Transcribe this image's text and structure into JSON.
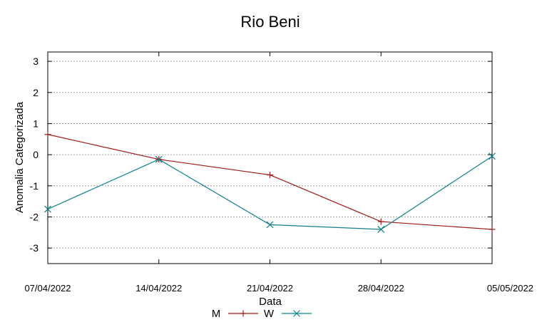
{
  "chart_data": {
    "type": "line",
    "title": "Rio Beni",
    "xlabel": "Data",
    "ylabel": "Anomalia Categorizada",
    "categories": [
      "07/04/2022",
      "14/04/2022",
      "21/04/2022",
      "28/04/2022",
      "05/05/2022"
    ],
    "yticks": [
      "-3",
      "-2",
      "-1",
      "0",
      "1",
      "2",
      "3"
    ],
    "ylim": [
      -3.5,
      3.3
    ],
    "grid": true,
    "legend_position": "bottom",
    "series": [
      {
        "name": "M",
        "values": [
          0.65,
          -0.15,
          -0.65,
          -2.15,
          -2.4
        ],
        "color": "#a01818",
        "marker": "plus"
      },
      {
        "name": "W",
        "values": [
          -1.75,
          -0.15,
          -2.25,
          -2.4,
          -0.05
        ],
        "color": "#12808a",
        "marker": "cross"
      }
    ]
  }
}
